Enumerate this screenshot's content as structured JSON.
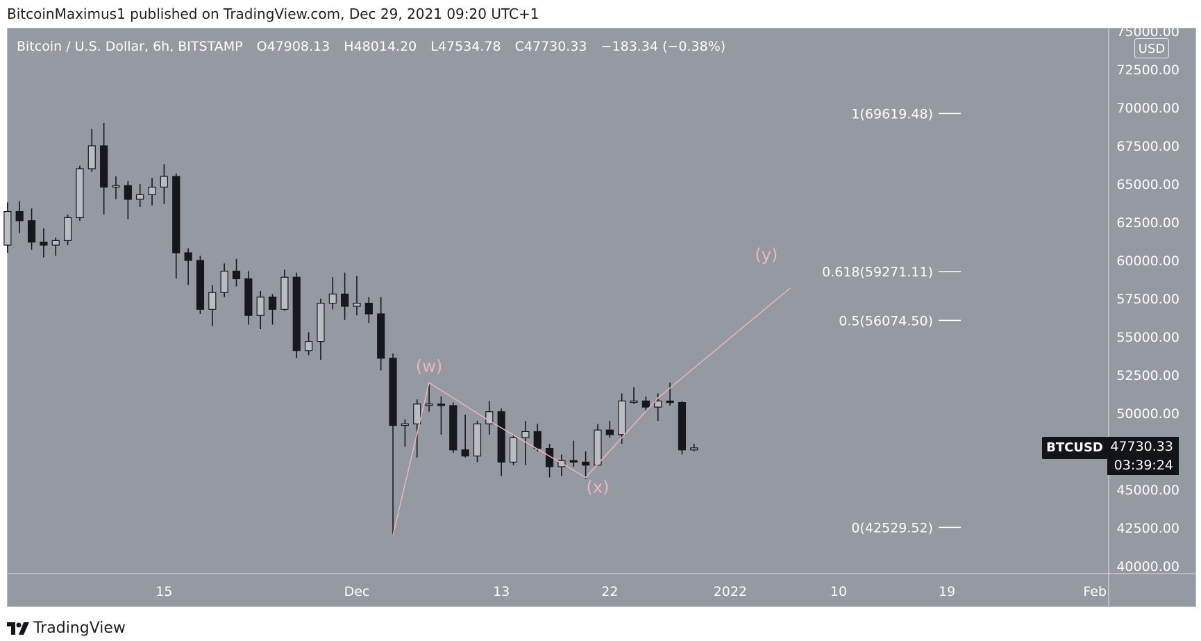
{
  "publisher": "BitcoinMaximus1 published on TradingView.com, Dec 29, 2021 09:20 UTC+1",
  "legend": {
    "symbol": "Bitcoin / U.S. Dollar, 6h, BITSTAMP",
    "open_label": "O",
    "open": "47908.13",
    "high_label": "H",
    "high": "48014.20",
    "low_label": "L",
    "low": "47534.78",
    "close_label": "C",
    "close": "47730.33",
    "change": "−183.34 (−0.38%)"
  },
  "currency": "USD",
  "price_tag": {
    "symbol": "BTCUSD",
    "price": "47730.33",
    "countdown": "03:39:24"
  },
  "brand": "TradingView",
  "colors": {
    "background": "#9599a2",
    "candle": "#16181d",
    "wave": "#e8b7be",
    "fib": "#ffffff",
    "text": "#ffffff"
  },
  "chart_data": {
    "type": "candlestick",
    "y_ticks": [
      "75000.00",
      "72500.00",
      "70000.00",
      "67500.00",
      "65000.00",
      "62500.00",
      "60000.00",
      "57500.00",
      "55000.00",
      "52500.00",
      "50000.00",
      "45000.00",
      "42500.00",
      "40000.00"
    ],
    "ylim": [
      40000,
      75000
    ],
    "x_ticks": [
      "15",
      "Dec",
      "13",
      "22",
      "2022",
      "10",
      "19",
      "Feb"
    ],
    "fib_levels": [
      {
        "label": "1(69619.48)",
        "value": 69619.48
      },
      {
        "label": "0.618(59271.11)",
        "value": 59271.11
      },
      {
        "label": "0.5(56074.50)",
        "value": 56074.5
      },
      {
        "label": "0(42529.52)",
        "value": 42529.52
      }
    ],
    "wave_labels": [
      {
        "label": "(w)",
        "value": 52700
      },
      {
        "label": "(x)",
        "value": 44800
      },
      {
        "label": "(y)",
        "value": 60000
      }
    ],
    "wave_path": [
      {
        "date": "2021-12-04",
        "value": 42000
      },
      {
        "date": "2021-12-07",
        "value": 52000
      },
      {
        "date": "2021-12-12",
        "value": 49500
      },
      {
        "date": "2021-12-20",
        "value": 45800
      },
      {
        "date": "2021-12-26",
        "value": 51000
      },
      {
        "date": "2022-01-06",
        "value": 58200
      }
    ],
    "candles": [
      {
        "d": "2021-11-02",
        "o": 61000,
        "h": 63800,
        "l": 60500,
        "c": 63200
      },
      {
        "d": "2021-11-03",
        "o": 63200,
        "h": 63900,
        "l": 61800,
        "c": 62600
      },
      {
        "d": "2021-11-04",
        "o": 62600,
        "h": 63400,
        "l": 60700,
        "c": 61200
      },
      {
        "d": "2021-11-05",
        "o": 61200,
        "h": 62100,
        "l": 60200,
        "c": 61000
      },
      {
        "d": "2021-11-06",
        "o": 61000,
        "h": 61500,
        "l": 60300,
        "c": 61300
      },
      {
        "d": "2021-11-07",
        "o": 61300,
        "h": 63000,
        "l": 61000,
        "c": 62800
      },
      {
        "d": "2021-11-08",
        "o": 62800,
        "h": 66200,
        "l": 62600,
        "c": 66000
      },
      {
        "d": "2021-11-09",
        "o": 66000,
        "h": 68600,
        "l": 65800,
        "c": 67500
      },
      {
        "d": "2021-11-10",
        "o": 67500,
        "h": 69000,
        "l": 63000,
        "c": 64800
      },
      {
        "d": "2021-11-11",
        "o": 64800,
        "h": 65500,
        "l": 64000,
        "c": 64900
      },
      {
        "d": "2021-11-12",
        "o": 64900,
        "h": 65200,
        "l": 62700,
        "c": 64000
      },
      {
        "d": "2021-11-13",
        "o": 64000,
        "h": 65000,
        "l": 63500,
        "c": 64300
      },
      {
        "d": "2021-11-14",
        "o": 64300,
        "h": 65400,
        "l": 63600,
        "c": 64800
      },
      {
        "d": "2021-11-15",
        "o": 64800,
        "h": 66300,
        "l": 63700,
        "c": 65500
      },
      {
        "d": "2021-11-16",
        "o": 65500,
        "h": 65700,
        "l": 58800,
        "c": 60500
      },
      {
        "d": "2021-11-17",
        "o": 60500,
        "h": 60800,
        "l": 58400,
        "c": 60000
      },
      {
        "d": "2021-11-18",
        "o": 60000,
        "h": 60300,
        "l": 56500,
        "c": 56800
      },
      {
        "d": "2021-11-19",
        "o": 56800,
        "h": 58400,
        "l": 55700,
        "c": 57900
      },
      {
        "d": "2021-11-20",
        "o": 57900,
        "h": 59800,
        "l": 57600,
        "c": 59300
      },
      {
        "d": "2021-11-21",
        "o": 59300,
        "h": 60100,
        "l": 58300,
        "c": 58800
      },
      {
        "d": "2021-11-22",
        "o": 58800,
        "h": 59300,
        "l": 55800,
        "c": 56400
      },
      {
        "d": "2021-11-23",
        "o": 56400,
        "h": 58000,
        "l": 55500,
        "c": 57600
      },
      {
        "d": "2021-11-24",
        "o": 57600,
        "h": 57800,
        "l": 55800,
        "c": 56800
      },
      {
        "d": "2021-11-25",
        "o": 56800,
        "h": 59400,
        "l": 56700,
        "c": 58900
      },
      {
        "d": "2021-11-26",
        "o": 58900,
        "h": 59200,
        "l": 53600,
        "c": 54100
      },
      {
        "d": "2021-11-27",
        "o": 54100,
        "h": 55300,
        "l": 53800,
        "c": 54700
      },
      {
        "d": "2021-11-28",
        "o": 54700,
        "h": 57500,
        "l": 53500,
        "c": 57200
      },
      {
        "d": "2021-11-29",
        "o": 57200,
        "h": 58900,
        "l": 56800,
        "c": 57800
      },
      {
        "d": "2021-11-30",
        "o": 57800,
        "h": 59200,
        "l": 56100,
        "c": 57000
      },
      {
        "d": "2021-12-01",
        "o": 57000,
        "h": 59000,
        "l": 56400,
        "c": 57200
      },
      {
        "d": "2021-12-02",
        "o": 57200,
        "h": 57600,
        "l": 55900,
        "c": 56500
      },
      {
        "d": "2021-12-03",
        "o": 56500,
        "h": 57600,
        "l": 52800,
        "c": 53600
      },
      {
        "d": "2021-12-04",
        "o": 53600,
        "h": 53900,
        "l": 42000,
        "c": 49200
      },
      {
        "d": "2021-12-05",
        "o": 49200,
        "h": 49600,
        "l": 47800,
        "c": 49300
      },
      {
        "d": "2021-12-06",
        "o": 49300,
        "h": 50900,
        "l": 47100,
        "c": 50600
      },
      {
        "d": "2021-12-07",
        "o": 50600,
        "h": 51900,
        "l": 50100,
        "c": 50600
      },
      {
        "d": "2021-12-08",
        "o": 50600,
        "h": 51100,
        "l": 48600,
        "c": 50500
      },
      {
        "d": "2021-12-09",
        "o": 50500,
        "h": 50700,
        "l": 47400,
        "c": 47600
      },
      {
        "d": "2021-12-10",
        "o": 47600,
        "h": 49900,
        "l": 47100,
        "c": 47200
      },
      {
        "d": "2021-12-11",
        "o": 47200,
        "h": 49500,
        "l": 46800,
        "c": 49300
      },
      {
        "d": "2021-12-12",
        "o": 49300,
        "h": 50800,
        "l": 48600,
        "c": 50100
      },
      {
        "d": "2021-12-13",
        "o": 50100,
        "h": 50300,
        "l": 45900,
        "c": 46800
      },
      {
        "d": "2021-12-14",
        "o": 46800,
        "h": 48600,
        "l": 46600,
        "c": 48400
      },
      {
        "d": "2021-12-15",
        "o": 48400,
        "h": 49500,
        "l": 46600,
        "c": 48800
      },
      {
        "d": "2021-12-16",
        "o": 48800,
        "h": 49300,
        "l": 47500,
        "c": 47700
      },
      {
        "d": "2021-12-17",
        "o": 47700,
        "h": 48000,
        "l": 45800,
        "c": 46500
      },
      {
        "d": "2021-12-18",
        "o": 46500,
        "h": 47300,
        "l": 45900,
        "c": 46900
      },
      {
        "d": "2021-12-19",
        "o": 46900,
        "h": 48200,
        "l": 46500,
        "c": 46800
      },
      {
        "d": "2021-12-20",
        "o": 46800,
        "h": 47500,
        "l": 45700,
        "c": 46600
      },
      {
        "d": "2021-12-21",
        "o": 46600,
        "h": 49300,
        "l": 46600,
        "c": 48900
      },
      {
        "d": "2021-12-22",
        "o": 48900,
        "h": 49500,
        "l": 48400,
        "c": 48600
      },
      {
        "d": "2021-12-23",
        "o": 48600,
        "h": 51300,
        "l": 48000,
        "c": 50800
      },
      {
        "d": "2021-12-24",
        "o": 50800,
        "h": 51700,
        "l": 50600,
        "c": 50800
      },
      {
        "d": "2021-12-25",
        "o": 50800,
        "h": 51100,
        "l": 50100,
        "c": 50400
      },
      {
        "d": "2021-12-26",
        "o": 50400,
        "h": 51300,
        "l": 49500,
        "c": 50800
      },
      {
        "d": "2021-12-27",
        "o": 50800,
        "h": 52000,
        "l": 50500,
        "c": 50700
      },
      {
        "d": "2021-12-28",
        "o": 50700,
        "h": 50800,
        "l": 47300,
        "c": 47600
      },
      {
        "d": "2021-12-29",
        "o": 47600,
        "h": 48000,
        "l": 47500,
        "c": 47730
      }
    ]
  }
}
